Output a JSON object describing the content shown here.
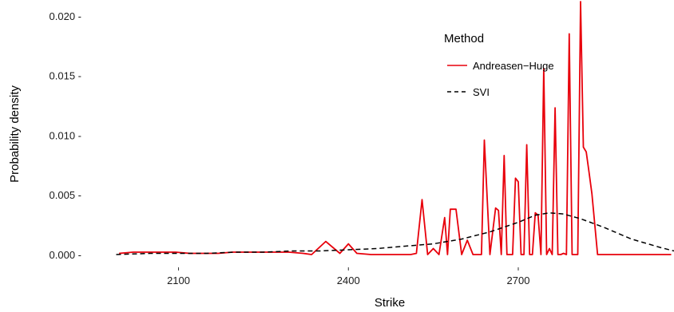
{
  "chart_data": {
    "type": "line",
    "xlabel": "Strike",
    "ylabel": "Probability density",
    "xlim": [
      1930,
      2975
    ],
    "ylim": [
      -0.0002,
      0.0212
    ],
    "x_ticks": [
      2100,
      2400,
      2700
    ],
    "x_tick_labels": [
      "2100",
      "2400",
      "2700"
    ],
    "y_ticks": [
      0.0,
      0.005,
      0.01,
      0.015,
      0.02
    ],
    "y_tick_labels": [
      "0.000 -",
      "0.005 -",
      "0.010 -",
      "0.015 -",
      "0.020 -"
    ],
    "grid": false,
    "legend": {
      "title": "Method",
      "position": "right-inside-top",
      "entries": [
        "Andreasen−Huge",
        "SVI"
      ]
    },
    "series": [
      {
        "name": "Andreasen−Huge",
        "color": "#e8000b",
        "dash": "solid",
        "x": [
          1995,
          2020,
          2045,
          2070,
          2095,
          2120,
          2145,
          2170,
          2195,
          2220,
          2245,
          2270,
          2295,
          2320,
          2335,
          2360,
          2385,
          2400,
          2415,
          2440,
          2465,
          2490,
          2510,
          2520,
          2530,
          2540,
          2550,
          2560,
          2570,
          2575,
          2580,
          2590,
          2600,
          2610,
          2620,
          2630,
          2635,
          2640,
          2650,
          2660,
          2665,
          2670,
          2675,
          2680,
          2690,
          2695,
          2700,
          2705,
          2710,
          2715,
          2720,
          2725,
          2730,
          2735,
          2740,
          2745,
          2750,
          2755,
          2760,
          2765,
          2770,
          2775,
          2780,
          2785,
          2790,
          2795,
          2800,
          2805,
          2810,
          2815,
          2820,
          2825,
          2830,
          2840,
          2850,
          2870,
          2890,
          2910,
          2930,
          2950,
          2970
        ],
        "y": [
          0.0001,
          0.0002,
          0.0002,
          0.0002,
          0.0002,
          0.0001,
          0.0001,
          0.0001,
          0.0002,
          0.0002,
          0.0002,
          0.0002,
          0.0002,
          0.0001,
          0.0,
          0.0011,
          0.0001,
          0.0009,
          0.0001,
          0.0,
          0.0,
          0.0,
          0.0,
          0.0001,
          0.0046,
          0.0,
          0.0005,
          0.0,
          0.0031,
          0.0,
          0.0038,
          0.0038,
          0.0,
          0.0012,
          0.0,
          0.0,
          0.0,
          0.0096,
          0.0,
          0.0039,
          0.0037,
          0.0,
          0.0083,
          0.0,
          0.0,
          0.0064,
          0.0061,
          0.0,
          0.0,
          0.0092,
          0.0,
          0.0,
          0.0035,
          0.0033,
          0.0,
          0.0156,
          0.0,
          0.0005,
          0.0,
          0.0123,
          0.0,
          0.0,
          0.0001,
          0.0,
          0.0185,
          0.0,
          0.0,
          0.0,
          0.0212,
          0.009,
          0.0086,
          0.0069,
          0.0051,
          0.0,
          0.0,
          0.0,
          0.0,
          0.0,
          0.0,
          0.0,
          0.0
        ]
      },
      {
        "name": "SVI",
        "color": "#000000",
        "dash": "dashed",
        "x": [
          1990,
          2050,
          2100,
          2150,
          2200,
          2250,
          2300,
          2350,
          2400,
          2450,
          2500,
          2550,
          2600,
          2650,
          2700,
          2730,
          2755,
          2780,
          2810,
          2850,
          2900,
          2950,
          2975
        ],
        "y": [
          0.0,
          0.0001,
          0.0001,
          0.0001,
          0.0002,
          0.0002,
          0.0003,
          0.0003,
          0.0004,
          0.0005,
          0.0007,
          0.0009,
          0.0013,
          0.0019,
          0.0027,
          0.0033,
          0.0035,
          0.0034,
          0.003,
          0.0023,
          0.0013,
          0.0006,
          0.0003
        ]
      }
    ]
  }
}
